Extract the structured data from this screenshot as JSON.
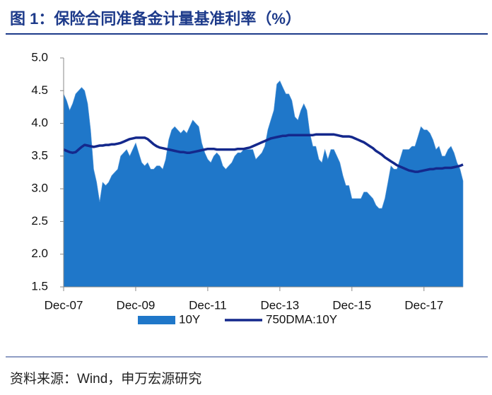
{
  "chart_data": {
    "type": "area",
    "title": "图 1：保险合同准备金计量基准利率（%）",
    "source": "资料来源：Wind，申万宏源研究",
    "categories": [
      "Dec-07",
      null,
      null,
      null,
      null,
      null,
      null,
      null,
      null,
      null,
      null,
      null,
      null,
      null,
      null,
      null,
      null,
      null,
      null,
      null,
      null,
      null,
      null,
      null,
      "Dec-09",
      null,
      null,
      null,
      null,
      null,
      null,
      null,
      null,
      null,
      null,
      null,
      null,
      null,
      null,
      null,
      null,
      null,
      null,
      null,
      null,
      null,
      null,
      null,
      "Dec-11",
      null,
      null,
      null,
      null,
      null,
      null,
      null,
      null,
      null,
      null,
      null,
      null,
      null,
      null,
      null,
      null,
      null,
      null,
      null,
      null,
      null,
      null,
      null,
      "Dec-13",
      null,
      null,
      null,
      null,
      null,
      null,
      null,
      null,
      null,
      null,
      null,
      null,
      null,
      null,
      null,
      null,
      null,
      null,
      null,
      null,
      null,
      null,
      null,
      "Dec-15",
      null,
      null,
      null,
      null,
      null,
      null,
      null,
      null,
      null,
      null,
      null,
      null,
      null,
      null,
      null,
      null,
      null,
      null,
      null,
      null,
      null,
      null,
      null,
      "Dec-17",
      null,
      null,
      null,
      null,
      null,
      null,
      null,
      null,
      null,
      null,
      null,
      null,
      null
    ],
    "series": [
      {
        "name": "10Y",
        "type": "area",
        "color": "#1f77c9",
        "values": [
          4.45,
          4.35,
          4.2,
          4.3,
          4.45,
          4.5,
          4.55,
          4.5,
          4.3,
          3.9,
          3.3,
          3.1,
          2.8,
          3.1,
          3.05,
          3.1,
          3.2,
          3.25,
          3.3,
          3.5,
          3.55,
          3.6,
          3.5,
          3.6,
          3.7,
          3.55,
          3.4,
          3.35,
          3.4,
          3.3,
          3.3,
          3.35,
          3.35,
          3.3,
          3.45,
          3.75,
          3.9,
          3.95,
          3.9,
          3.85,
          3.9,
          3.85,
          3.95,
          4.05,
          4.0,
          3.95,
          3.7,
          3.55,
          3.45,
          3.4,
          3.5,
          3.55,
          3.5,
          3.35,
          3.3,
          3.35,
          3.4,
          3.5,
          3.55,
          3.55,
          3.6,
          3.6,
          3.6,
          3.6,
          3.45,
          3.5,
          3.55,
          3.65,
          3.9,
          4.05,
          4.2,
          4.6,
          4.65,
          4.55,
          4.45,
          4.45,
          4.35,
          4.1,
          4.05,
          4.2,
          4.3,
          4.2,
          3.85,
          3.65,
          3.65,
          3.45,
          3.4,
          3.6,
          3.45,
          3.6,
          3.6,
          3.5,
          3.4,
          3.2,
          3.05,
          3.05,
          2.85,
          2.85,
          2.85,
          2.85,
          2.95,
          2.95,
          2.9,
          2.85,
          2.75,
          2.7,
          2.7,
          2.85,
          3.1,
          3.35,
          3.3,
          3.3,
          3.45,
          3.6,
          3.6,
          3.6,
          3.65,
          3.65,
          3.8,
          3.95,
          3.9,
          3.9,
          3.85,
          3.75,
          3.6,
          3.65,
          3.5,
          3.5,
          3.6,
          3.65,
          3.55,
          3.4,
          3.3,
          3.12
        ]
      },
      {
        "name": "750DMA:10Y",
        "type": "line",
        "color": "#14288c",
        "values": [
          3.6,
          3.58,
          3.56,
          3.55,
          3.56,
          3.6,
          3.64,
          3.67,
          3.66,
          3.65,
          3.64,
          3.65,
          3.66,
          3.66,
          3.67,
          3.67,
          3.68,
          3.68,
          3.69,
          3.7,
          3.72,
          3.74,
          3.76,
          3.77,
          3.78,
          3.78,
          3.78,
          3.78,
          3.76,
          3.72,
          3.68,
          3.65,
          3.63,
          3.62,
          3.61,
          3.6,
          3.59,
          3.58,
          3.57,
          3.56,
          3.56,
          3.55,
          3.55,
          3.56,
          3.57,
          3.58,
          3.59,
          3.6,
          3.61,
          3.61,
          3.61,
          3.6,
          3.6,
          3.6,
          3.6,
          3.6,
          3.6,
          3.6,
          3.61,
          3.61,
          3.61,
          3.62,
          3.63,
          3.65,
          3.67,
          3.69,
          3.71,
          3.73,
          3.75,
          3.77,
          3.78,
          3.79,
          3.8,
          3.81,
          3.81,
          3.82,
          3.82,
          3.82,
          3.82,
          3.82,
          3.82,
          3.82,
          3.82,
          3.82,
          3.83,
          3.83,
          3.83,
          3.83,
          3.83,
          3.83,
          3.83,
          3.82,
          3.81,
          3.8,
          3.8,
          3.8,
          3.79,
          3.77,
          3.75,
          3.73,
          3.71,
          3.68,
          3.65,
          3.62,
          3.58,
          3.55,
          3.52,
          3.48,
          3.45,
          3.42,
          3.39,
          3.36,
          3.34,
          3.32,
          3.3,
          3.28,
          3.27,
          3.26,
          3.26,
          3.27,
          3.28,
          3.29,
          3.3,
          3.3,
          3.31,
          3.31,
          3.31,
          3.32,
          3.32,
          3.32,
          3.33,
          3.34,
          3.35,
          3.37
        ]
      }
    ],
    "ylim": [
      1.5,
      5.0
    ],
    "yticks": [
      1.5,
      {
        "value": 2,
        "label": "2.0"
      },
      2.5,
      {
        "value": 3,
        "label": "3.0"
      },
      3.5,
      {
        "value": 4,
        "label": "4.0"
      },
      4.5,
      {
        "value": 5,
        "label": "5.0"
      }
    ],
    "grid": false,
    "legend": "bottom"
  }
}
